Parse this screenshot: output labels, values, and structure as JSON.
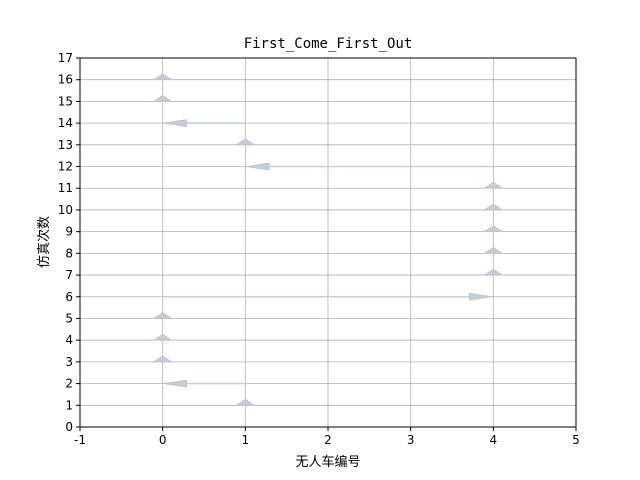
{
  "chart_data": {
    "type": "quiver",
    "title": "First_Come_First_Out",
    "xlabel": "无人车编号",
    "ylabel": "仿真次数",
    "xlim": [
      -1,
      5
    ],
    "ylim": [
      0,
      17
    ],
    "xticks": [
      "-1",
      "0",
      "1",
      "2",
      "3",
      "4",
      "5"
    ],
    "yticks": [
      "0",
      "1",
      "2",
      "3",
      "4",
      "5",
      "6",
      "7",
      "8",
      "9",
      "10",
      "11",
      "12",
      "13",
      "14",
      "15",
      "16",
      "17"
    ],
    "grid": true,
    "arrows": [
      {
        "x0": 1,
        "y0": 1,
        "x1": 1,
        "y1": 1,
        "direction": "up"
      },
      {
        "x0": 1,
        "y0": 2,
        "x1": 0,
        "y1": 2,
        "direction": "left"
      },
      {
        "x0": 0,
        "y0": 3,
        "x1": 0,
        "y1": 3,
        "direction": "up"
      },
      {
        "x0": 0,
        "y0": 4,
        "x1": 0,
        "y1": 4,
        "direction": "up"
      },
      {
        "x0": 0,
        "y0": 5,
        "x1": 0,
        "y1": 5,
        "direction": "up"
      },
      {
        "x0": 0,
        "y0": 6,
        "x1": 4,
        "y1": 6,
        "direction": "right"
      },
      {
        "x0": 4,
        "y0": 7,
        "x1": 4,
        "y1": 7,
        "direction": "up"
      },
      {
        "x0": 4,
        "y0": 8,
        "x1": 4,
        "y1": 8,
        "direction": "up"
      },
      {
        "x0": 4,
        "y0": 9,
        "x1": 4,
        "y1": 9,
        "direction": "up"
      },
      {
        "x0": 4,
        "y0": 10,
        "x1": 4,
        "y1": 10,
        "direction": "up"
      },
      {
        "x0": 4,
        "y0": 11,
        "x1": 4,
        "y1": 11,
        "direction": "up"
      },
      {
        "x0": 4,
        "y0": 12,
        "x1": 1,
        "y1": 12,
        "direction": "left"
      },
      {
        "x0": 1,
        "y0": 13,
        "x1": 1,
        "y1": 13,
        "direction": "up"
      },
      {
        "x0": 1,
        "y0": 14,
        "x1": 0,
        "y1": 14,
        "direction": "left"
      },
      {
        "x0": 0,
        "y0": 15,
        "x1": 0,
        "y1": 15,
        "direction": "up"
      },
      {
        "x0": 0,
        "y0": 16,
        "x1": 0,
        "y1": 16,
        "direction": "up"
      }
    ],
    "colors": {
      "arrow": "#c5cdd8",
      "grid": "#b0b0b0"
    }
  }
}
